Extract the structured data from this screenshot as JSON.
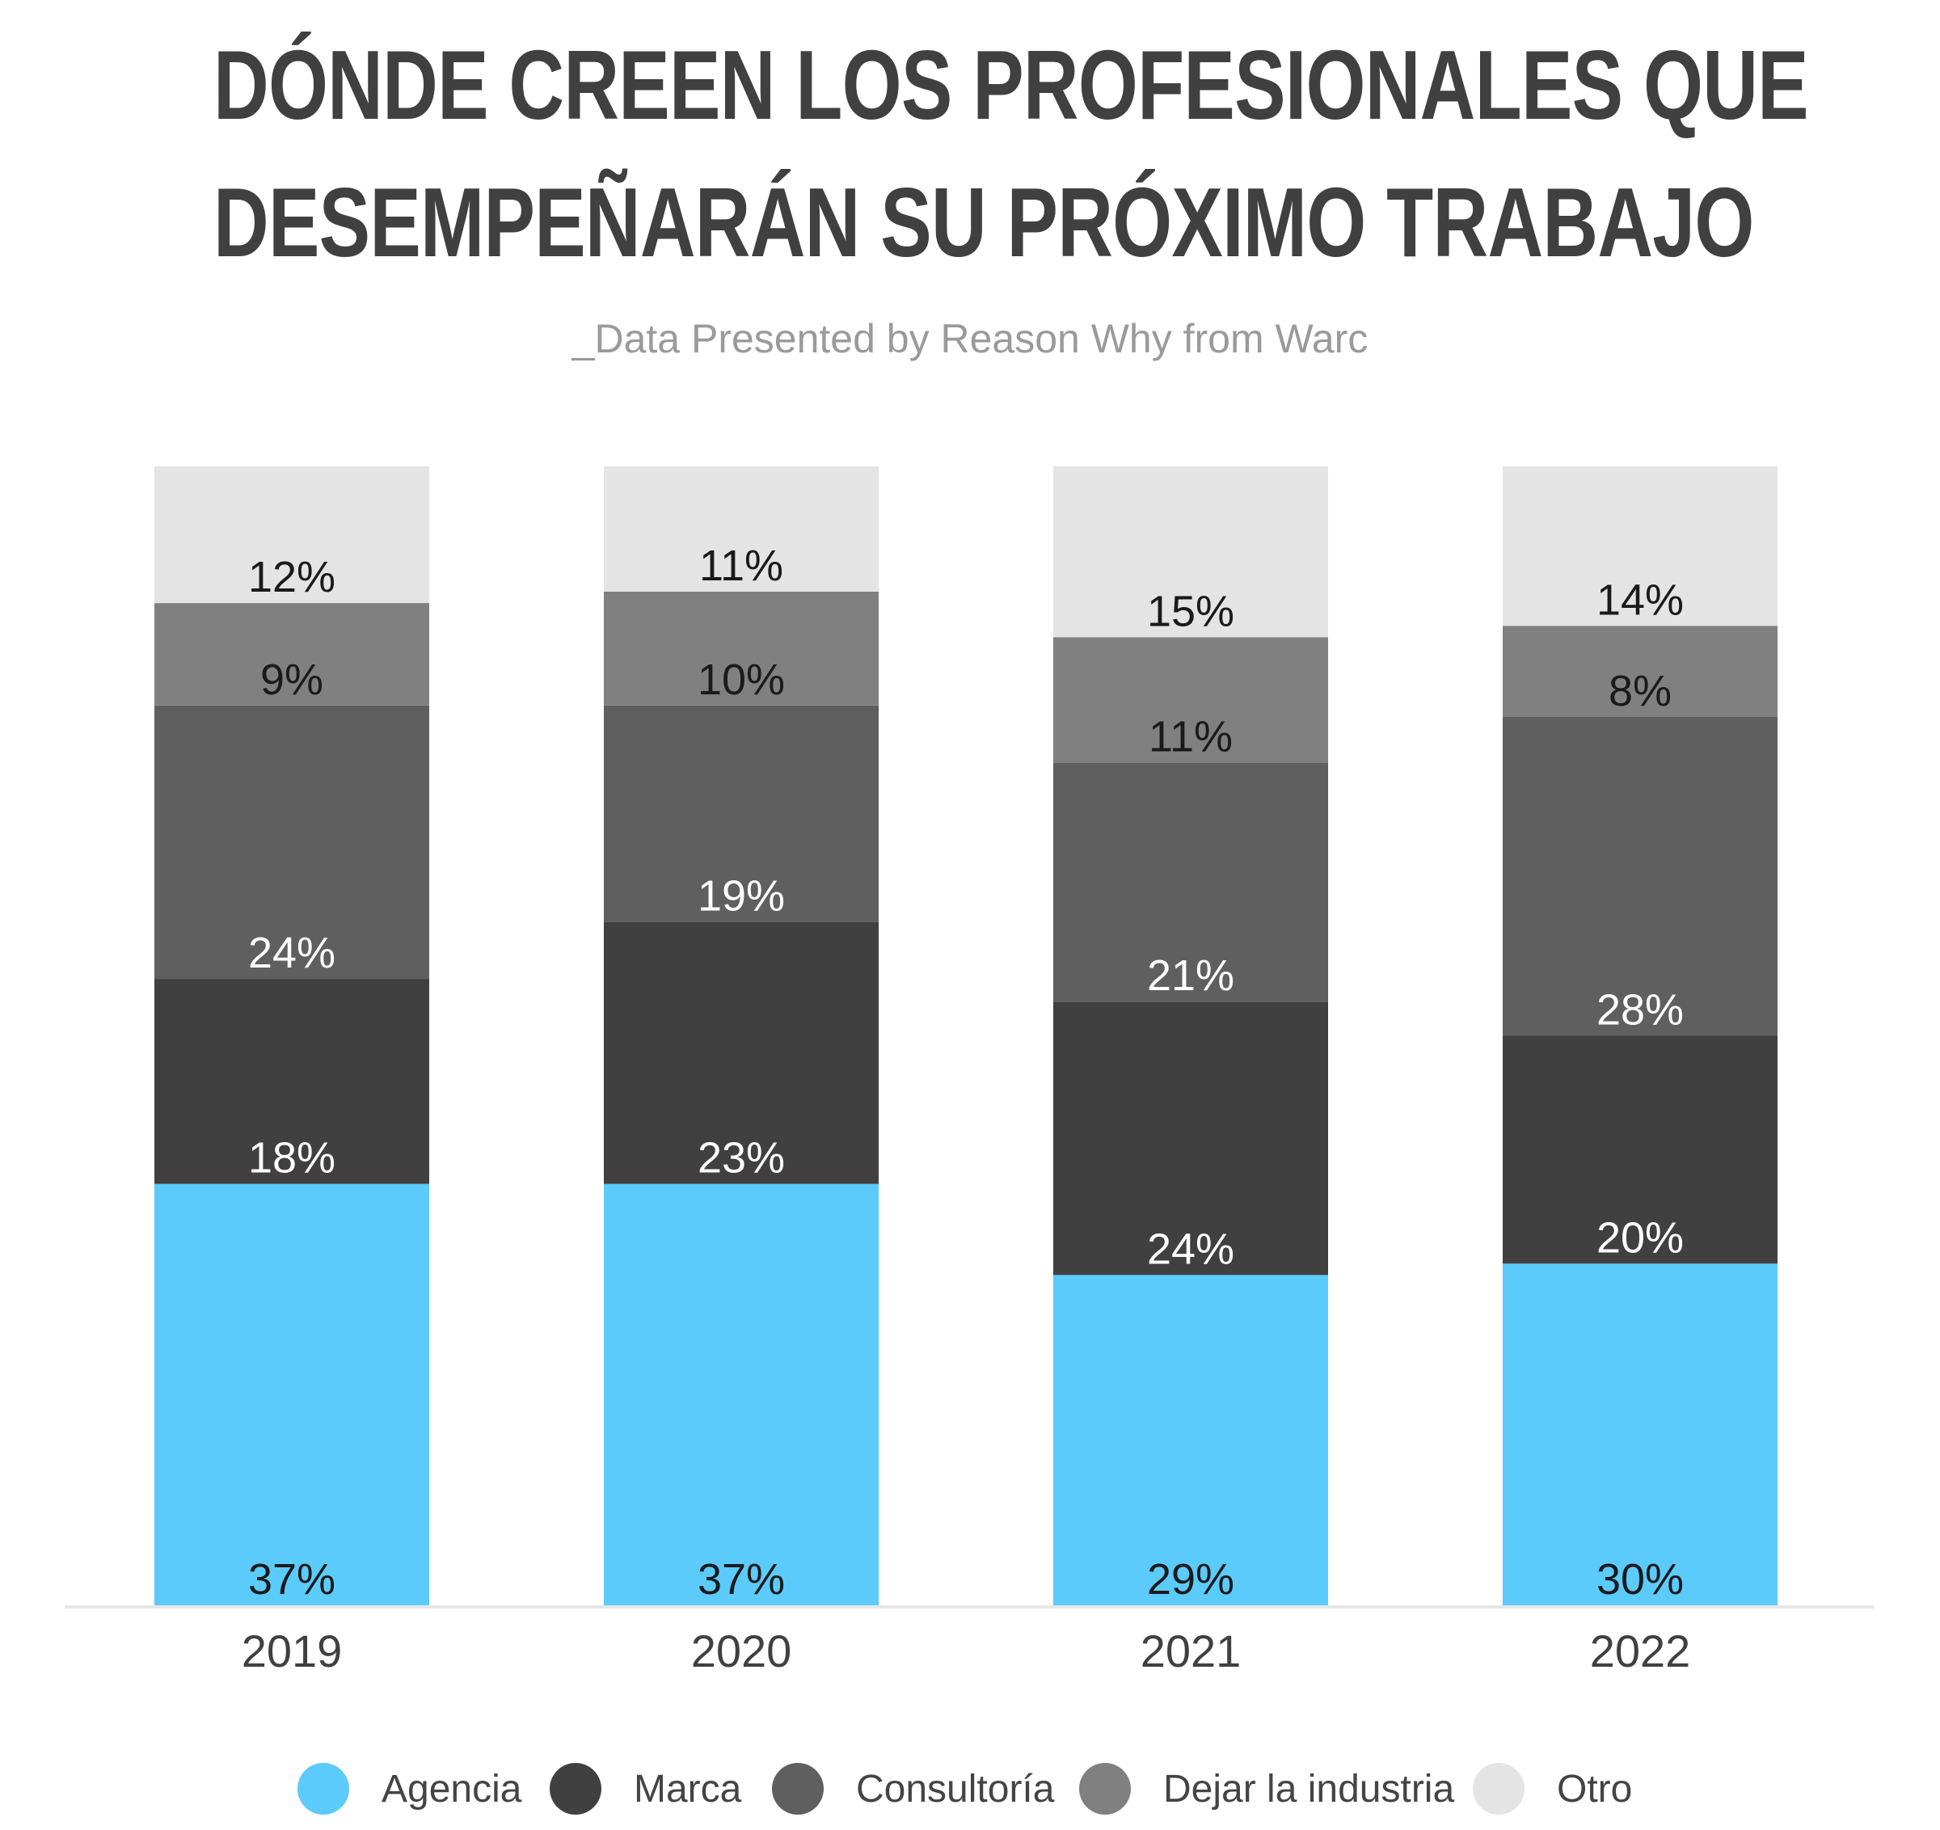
{
  "header": {
    "title_line1": "DÓNDE CREEN LOS PROFESIONALES QUE",
    "title_line2": "DESEMPEÑARÁN SU PRÓXIMO TRABAJO",
    "subtitle": "_Data Presented by Reason Why from Warc"
  },
  "chart_data": {
    "type": "bar",
    "stacked": true,
    "categories": [
      "2019",
      "2020",
      "2021",
      "2022"
    ],
    "series": [
      {
        "name": "Agencia",
        "color": "#5bcbfb",
        "label_color": "#1a1a1a",
        "values": [
          37,
          37,
          29,
          30
        ]
      },
      {
        "name": "Marca",
        "color": "#404040",
        "label_color": "#ffffff",
        "values": [
          18,
          23,
          24,
          20
        ]
      },
      {
        "name": "Consultoría",
        "color": "#5f5f5f",
        "label_color": "#ffffff",
        "values": [
          24,
          19,
          21,
          28
        ]
      },
      {
        "name": "Dejar la industria",
        "color": "#808080",
        "label_color": "#1a1a1a",
        "values": [
          9,
          10,
          11,
          8
        ]
      },
      {
        "name": "Otro",
        "color": "#e4e4e4",
        "label_color": "#1a1a1a",
        "values": [
          12,
          11,
          15,
          14
        ]
      }
    ],
    "value_suffix": "%",
    "ylim": [
      0,
      100
    ],
    "grid": false,
    "legend_position": "bottom",
    "axis_color": "#e6e6e6"
  }
}
